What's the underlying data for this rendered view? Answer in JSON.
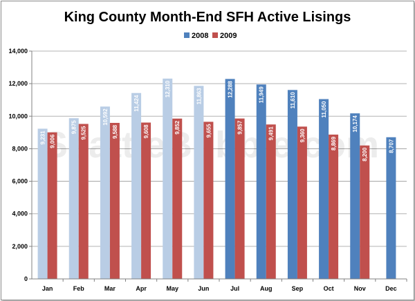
{
  "chart_data": {
    "type": "bar",
    "title": "King County Month-End SFH Active Lisings",
    "categories": [
      "Jan",
      "Feb",
      "Mar",
      "Apr",
      "May",
      "Jun",
      "Jul",
      "Aug",
      "Sep",
      "Oct",
      "Nov",
      "Dec"
    ],
    "series": [
      {
        "name": "2008",
        "values": [
          9231,
          9875,
          10592,
          11424,
          12310,
          11863,
          12288,
          11949,
          11610,
          11050,
          10174,
          8707
        ],
        "labels": [
          "9,231",
          "9,875",
          "10,592",
          "11,424",
          "12,310",
          "11,863",
          "12,288",
          "11,949",
          "11,610",
          "11,050",
          "10,174",
          "8,707"
        ],
        "color": "#4f81bd",
        "faded_color": "#b9cde5",
        "faded_months": 6
      },
      {
        "name": "2009",
        "values": [
          9006,
          9525,
          9588,
          9608,
          9852,
          9655,
          9857,
          9491,
          9360,
          8869,
          8200,
          null
        ],
        "labels": [
          "9,006",
          "9,525",
          "9,588",
          "9,608",
          "9,852",
          "9,655",
          "9,857",
          "9,491",
          "9,360",
          "8,869",
          "8,200",
          ""
        ],
        "color": "#c0504d"
      }
    ],
    "ylim": [
      0,
      14000
    ],
    "yticks": [
      0,
      2000,
      4000,
      6000,
      8000,
      10000,
      12000,
      14000
    ],
    "ytick_labels": [
      "0",
      "2,000",
      "4,000",
      "6,000",
      "8,000",
      "10,000",
      "12,000",
      "14,000"
    ],
    "grid": true,
    "legend_position": "top",
    "watermark": "SeattleBubble.com"
  }
}
